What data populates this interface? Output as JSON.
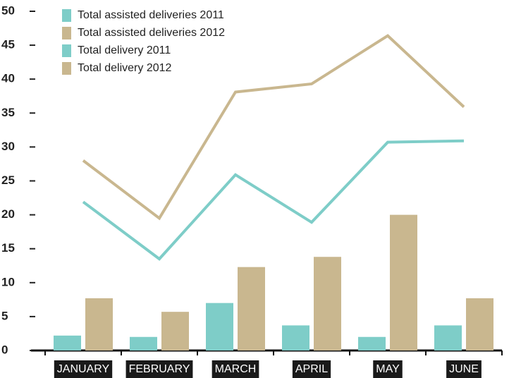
{
  "chart_data": {
    "type": "bar",
    "categories": [
      "JANUARY",
      "FEBRUARY",
      "MARCH",
      "APRIL",
      "MAY",
      "JUNE"
    ],
    "series": [
      {
        "name": "Total assisted deliveries 2011",
        "type": "bar",
        "color": "#7ecdc8",
        "values": [
          2.2,
          2,
          7,
          3.7,
          2,
          3.7
        ]
      },
      {
        "name": "Total assisted deliveries 2012",
        "type": "bar",
        "color": "#c9b78f",
        "values": [
          7.7,
          5.7,
          12.3,
          13.8,
          20,
          7.7
        ]
      },
      {
        "name": "Total delivery 2011",
        "type": "line",
        "color": "#7ecdc8",
        "values": [
          21.9,
          13.5,
          25.9,
          18.9,
          30.7,
          30.9
        ]
      },
      {
        "name": "Total delivery 2012",
        "type": "line",
        "color": "#c9b78f",
        "values": [
          28,
          19.5,
          38.1,
          39.3,
          46.4,
          35.9
        ]
      }
    ],
    "ylim": [
      0,
      50
    ],
    "yticks": [
      0,
      5,
      10,
      15,
      20,
      25,
      30,
      35,
      40,
      45,
      50
    ],
    "legend": "upper left"
  }
}
